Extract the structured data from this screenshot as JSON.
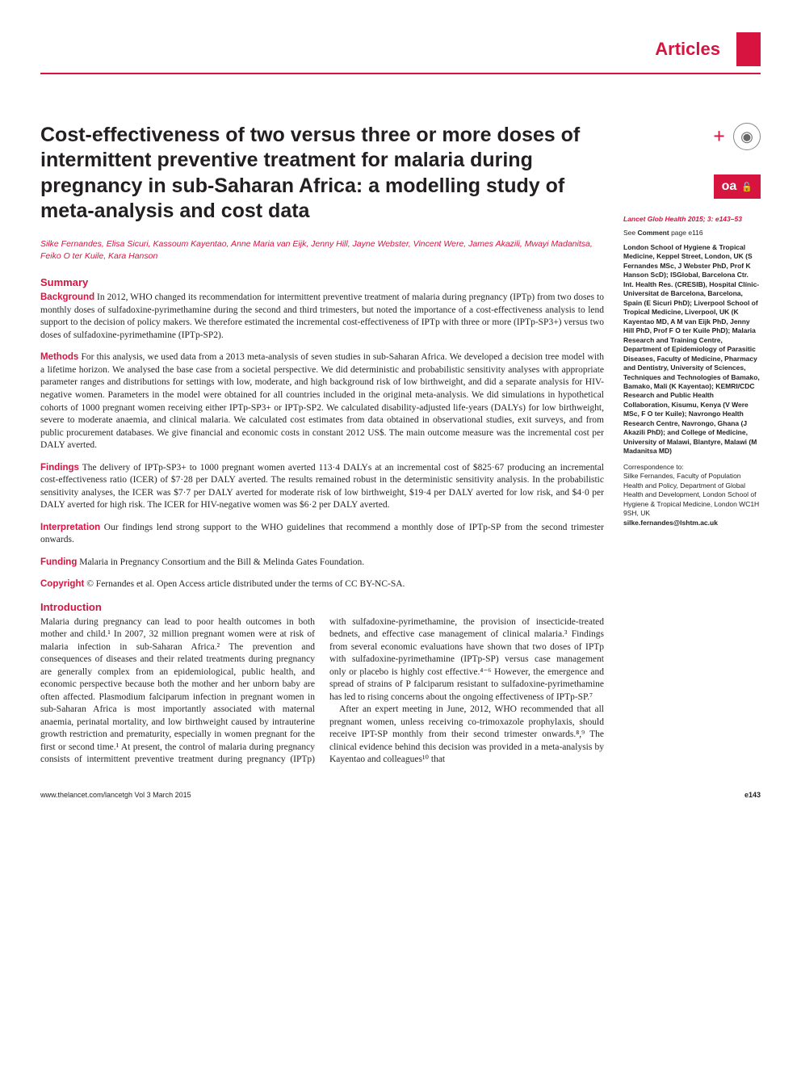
{
  "header": {
    "section_label": "Articles"
  },
  "article": {
    "title": "Cost-effectiveness of two versus three or more doses of intermittent preventive treatment for malaria during pregnancy in sub-Saharan Africa: a modelling study of meta-analysis and cost data",
    "authors": "Silke Fernandes, Elisa Sicuri, Kassoum Kayentao, Anne Maria van Eijk, Jenny Hill, Jayne Webster, Vincent Were, James Akazili, Mwayi Madanitsa, Feiko O ter Kuile, Kara Hanson",
    "summary_heading": "Summary",
    "abstract": {
      "background_label": "Background",
      "background_text": " In 2012, WHO changed its recommendation for intermittent preventive treatment of malaria during pregnancy (IPTp) from two doses to monthly doses of sulfadoxine-pyrimethamine during the second and third trimesters, but noted the importance of a cost-effectiveness analysis to lend support to the decision of policy makers. We therefore estimated the incremental cost-effectiveness of IPTp with three or more (IPTp-SP3+) versus two doses of sulfadoxine-pyrimethamine (IPTp-SP2).",
      "methods_label": "Methods",
      "methods_text": " For this analysis, we used data from a 2013 meta-analysis of seven studies in sub-Saharan Africa. We developed a decision tree model with a lifetime horizon. We analysed the base case from a societal perspective. We did deterministic and probabilistic sensitivity analyses with appropriate parameter ranges and distributions for settings with low, moderate, and high background risk of low birthweight, and did a separate analysis for HIV-negative women. Parameters in the model were obtained for all countries included in the original meta-analysis. We did simulations in hypothetical cohorts of 1000 pregnant women receiving either IPTp-SP3+ or IPTp-SP2. We calculated disability-adjusted life-years (DALYs) for low birthweight, severe to moderate anaemia, and clinical malaria. We calculated cost estimates from data obtained in observational studies, exit surveys, and from public procurement databases. We give financial and economic costs in constant 2012 US$. The main outcome measure was the incremental cost per DALY averted.",
      "findings_label": "Findings",
      "findings_text": " The delivery of IPTp-SP3+ to 1000 pregnant women averted 113·4 DALYs at an incremental cost of $825·67 producing an incremental cost-effectiveness ratio (ICER) of $7·28 per DALY averted. The results remained robust in the deterministic sensitivity analysis. In the probabilistic sensitivity analyses, the ICER was $7·7 per DALY averted for moderate risk of low birthweight, $19·4 per DALY averted for low risk, and $4·0 per DALY averted for high risk. The ICER for HIV-negative women was $6·2 per DALY averted.",
      "interpretation_label": "Interpretation",
      "interpretation_text": " Our findings lend strong support to the WHO guidelines that recommend a monthly dose of IPTp-SP from the second trimester onwards.",
      "funding_label": "Funding",
      "funding_text": " Malaria in Pregnancy Consortium and the Bill & Melinda Gates Foundation.",
      "copyright_label": "Copyright",
      "copyright_text": " © Fernandes et al. Open Access article distributed under the terms of CC BY-NC-SA."
    },
    "intro_heading": "Introduction",
    "body_para1": "Malaria during pregnancy can lead to poor health outcomes in both mother and child.¹ In 2007, 32 million pregnant women were at risk of malaria infection in sub-Saharan Africa.² The prevention and consequences of diseases and their related treatments during pregnancy are generally complex from an epidemiological, public health, and economic perspective because both the mother and her unborn baby are often affected. Plasmodium falciparum infection in pregnant women in sub-Saharan Africa is most importantly associated with maternal anaemia, perinatal mortality, and low birthweight caused by intrauterine growth restriction and prematurity, especially in women pregnant for the first or second time.¹ At present, the control of malaria during pregnancy consists of intermittent preventive treatment during pregnancy (IPTp) with sulfadoxine-pyrimethamine, the provision of insecticide-treated bednets, and effective case management of clinical malaria.³ Findings from several economic evaluations have shown that two doses of IPTp with sulfadoxine-pyrimethamine (IPTp-SP) versus case management only or placebo is highly cost effective.⁴⁻⁶ However, the emergence and spread of strains of P falciparum resistant to sulfadoxine-pyrimethamine has led to rising concerns about the ongoing effectiveness of IPTp-SP.⁷",
    "body_para2": "After an expert meeting in June, 2012, WHO recommended that all pregnant women, unless receiving co-trimoxazole prophylaxis, should receive IPT-SP monthly from their second trimester onwards.⁸,⁹ The clinical evidence behind this decision was provided in a meta-analysis by Kayentao and colleagues¹⁰ that"
  },
  "sidebar": {
    "citation": "Lancet Glob Health 2015; 3: e143–53",
    "comment": "See Comment page e116",
    "affiliations": "London School of Hygiene & Tropical Medicine, Keppel Street, London, UK (S Fernandes MSc, J Webster PhD, Prof K Hanson ScD); ISGlobal, Barcelona Ctr. Int. Health Res. (CRESIB), Hospital Clínic-Universitat de Barcelona, Barcelona, Spain (E Sicuri PhD); Liverpool School of Tropical Medicine, Liverpool, UK (K Kayentao MD, A M van Eijk PhD, Jenny Hill PhD, Prof F O ter Kuile PhD); Malaria Research and Training Centre, Department of Epidemiology of Parasitic Diseases, Faculty of Medicine, Pharmacy and Dentistry, University of Sciences, Techniques and Technologies of Bamako, Bamako, Mali (K Kayentao); KEMRI/CDC Research and Public Health Collaboration, Kisumu, Kenya (V Were MSc, F O ter Kuile); Navrongo Health Research Centre, Navrongo, Ghana (J Akazili PhD); and College of Medicine, University of Malawi, Blantyre, Malawi (M Madanitsa MD)",
    "correspondence_label": "Correspondence to:",
    "correspondence": "Silke Fernandes, Faculty of Population Health and Policy, Department of Global Health and Development, London School of Hygiene & Tropical Medicine, London WC1H 9SH, UK",
    "email": "silke.fernandes@lshtm.ac.uk",
    "oa_label": "oa",
    "oa_sub": "OPEN ACCESS",
    "crossmark_label": "CrossMark"
  },
  "footer": {
    "left": "www.thelancet.com/lancetgh   Vol 3   March 2015",
    "right": "e143"
  },
  "colors": {
    "brand_red": "#d71440",
    "text": "#231f20",
    "bg": "#ffffff"
  }
}
